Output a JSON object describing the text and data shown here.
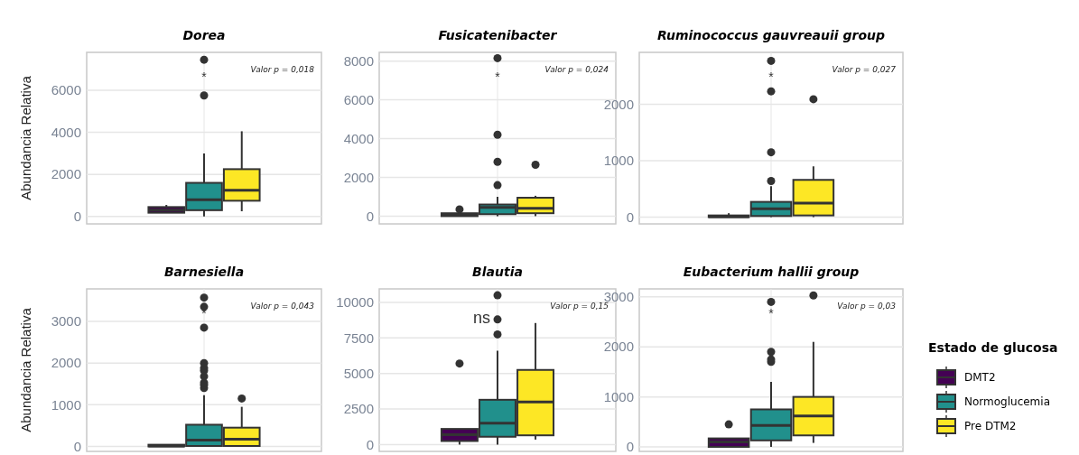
{
  "chart_data": [
    {
      "type": "box",
      "title": "Dorea",
      "ylabel": "Abundancia Relativa",
      "categories": [
        null
      ],
      "ylim": [
        -350,
        7800
      ],
      "yticks": [
        0,
        2000,
        4000,
        6000
      ],
      "grid": true,
      "tick_labels": "y",
      "annotations": [
        "Valor p = 0,018",
        "*"
      ],
      "series": [
        {
          "color": "#440154",
          "boxes": [
            {
              "low": 180,
              "q1": 180,
              "median": 300,
              "q3": 450,
              "high": 550
            }
          ]
        },
        {
          "color": "#21908c",
          "boxes": [
            {
              "low": 0,
              "q1": 300,
              "median": 800,
              "q3": 1600,
              "high": 3000,
              "outliers": [
                5750,
                7450
              ]
            }
          ]
        },
        {
          "color": "#fde725",
          "boxes": [
            {
              "low": 250,
              "q1": 750,
              "median": 1250,
              "q3": 2250,
              "high": 4050
            }
          ]
        }
      ]
    },
    {
      "type": "box",
      "title": "Fusicatenibacter",
      "categories": [
        null
      ],
      "ylim": [
        -400,
        8450
      ],
      "yticks": [
        0,
        2000,
        4000,
        6000,
        8000
      ],
      "grid": true,
      "tick_labels": "y",
      "annotations": [
        "Valor p = 0,024",
        "*"
      ],
      "series": [
        {
          "color": "#440154",
          "boxes": [
            {
              "low": 0,
              "q1": 0,
              "median": 50,
              "q3": 150,
              "high": 200,
              "outliers": [
                350
              ]
            }
          ]
        },
        {
          "color": "#21908c",
          "boxes": [
            {
              "low": 0,
              "q1": 100,
              "median": 450,
              "q3": 600,
              "high": 1000,
              "outliers": [
                1600,
                2800,
                4200,
                8150
              ]
            }
          ]
        },
        {
          "color": "#fde725",
          "boxes": [
            {
              "low": 0,
              "q1": 150,
              "median": 400,
              "q3": 950,
              "high": 1050,
              "outliers": [
                2650
              ]
            }
          ]
        }
      ]
    },
    {
      "type": "box",
      "title": "Ruminococcus gauvreauii group",
      "categories": [
        null
      ],
      "ylim": [
        -120,
        2920
      ],
      "yticks": [
        0,
        1000,
        2000
      ],
      "grid": true,
      "tick_labels": "y",
      "annotations": [
        "Valor p = 0,027",
        "*"
      ],
      "series": [
        {
          "color": "#440154",
          "boxes": [
            {
              "low": 0,
              "q1": 0,
              "median": 10,
              "q3": 30,
              "high": 70
            }
          ]
        },
        {
          "color": "#21908c",
          "boxes": [
            {
              "low": 0,
              "q1": 20,
              "median": 150,
              "q3": 270,
              "high": 550,
              "outliers": [
                640,
                1150,
                2230,
                2770
              ]
            }
          ]
        },
        {
          "color": "#fde725",
          "boxes": [
            {
              "low": 0,
              "q1": 30,
              "median": 250,
              "q3": 660,
              "high": 900,
              "outliers": [
                2090
              ]
            }
          ]
        }
      ]
    },
    {
      "type": "box",
      "title": "Barnesiella",
      "ylabel": "Abundancia Relativa",
      "categories": [
        null
      ],
      "ylim": [
        -120,
        3780
      ],
      "yticks": [
        0,
        1000,
        2000,
        3000
      ],
      "grid": true,
      "tick_labels": "y",
      "annotations": [
        "Valor p = 0,043",
        "*"
      ],
      "series": [
        {
          "color": "#440154",
          "boxes": [
            {
              "low": 0,
              "q1": 0,
              "median": 10,
              "q3": 40,
              "high": 40
            }
          ]
        },
        {
          "color": "#21908c",
          "boxes": [
            {
              "low": 0,
              "q1": 10,
              "median": 150,
              "q3": 520,
              "high": 1230,
              "outliers": [
                1400,
                1480,
                1530,
                1680,
                1820,
                1880,
                2000,
                2850,
                3350,
                3570
              ]
            }
          ]
        },
        {
          "color": "#fde725",
          "boxes": [
            {
              "low": 0,
              "q1": 10,
              "median": 170,
              "q3": 450,
              "high": 950,
              "outliers": [
                1150
              ]
            }
          ]
        }
      ]
    },
    {
      "type": "box",
      "title": "Blautia",
      "categories": [
        null
      ],
      "ylim": [
        -480,
        10950
      ],
      "yticks": [
        0,
        2500,
        5000,
        7500,
        10000
      ],
      "grid": true,
      "tick_labels": "y",
      "annotations": [
        "Valor p = 0,15",
        "ns"
      ],
      "series": [
        {
          "color": "#440154",
          "boxes": [
            {
              "low": 0,
              "q1": 250,
              "median": 700,
              "q3": 1100,
              "high": 1100,
              "outliers": [
                5700
              ]
            }
          ]
        },
        {
          "color": "#21908c",
          "boxes": [
            {
              "low": 0,
              "q1": 550,
              "median": 1500,
              "q3": 3150,
              "high": 6600,
              "outliers": [
                7750,
                8800,
                10500
              ]
            }
          ]
        },
        {
          "color": "#fde725",
          "boxes": [
            {
              "low": 350,
              "q1": 650,
              "median": 3000,
              "q3": 5250,
              "high": 8550
            }
          ]
        }
      ]
    },
    {
      "type": "box",
      "title": "Eubacterium hallii group",
      "categories": [
        null
      ],
      "ylim": [
        -90,
        3160
      ],
      "yticks": [
        0,
        1000,
        2000,
        3000
      ],
      "grid": true,
      "tick_labels": "y",
      "legend": "right",
      "legend_title": "Estado de glucosa",
      "annotations": [
        "Valor p = 0,03",
        "*"
      ],
      "series": [
        {
          "name": "DMT2",
          "color": "#440154",
          "boxes": [
            {
              "low": 0,
              "q1": 0,
              "median": 100,
              "q3": 170,
              "high": 170,
              "outliers": [
                450
              ]
            }
          ]
        },
        {
          "name": "Normoglucemia",
          "color": "#21908c",
          "boxes": [
            {
              "low": 0,
              "q1": 130,
              "median": 430,
              "q3": 750,
              "high": 1300,
              "outliers": [
                1700,
                1750,
                1900,
                2900
              ]
            }
          ]
        },
        {
          "name": "Pre DTM2",
          "color": "#fde725",
          "boxes": [
            {
              "low": 80,
              "q1": 230,
              "median": 620,
              "q3": 1000,
              "high": 2100,
              "outliers": [
                3030
              ]
            }
          ]
        }
      ]
    }
  ]
}
